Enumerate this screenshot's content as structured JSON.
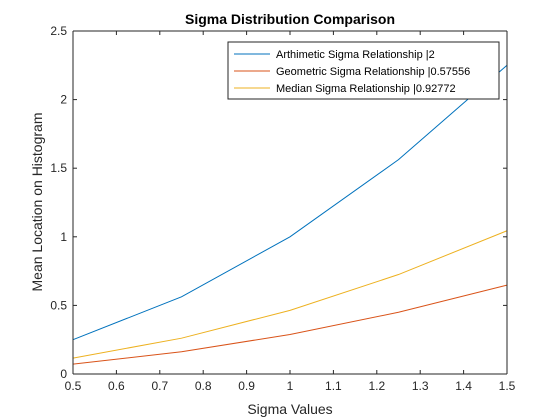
{
  "chart_data": {
    "type": "line",
    "title": "Sigma Distribution Comparison",
    "xlabel": "Sigma Values",
    "ylabel": "Mean Location on Histogram",
    "xlim": [
      0.5,
      1.5
    ],
    "ylim": [
      0,
      2.5
    ],
    "xticks": [
      "0.5",
      "0.6",
      "0.7",
      "0.8",
      "0.9",
      "1",
      "1.1",
      "1.2",
      "1.3",
      "1.4",
      "1.5"
    ],
    "yticks": [
      "0",
      "0.5",
      "1",
      "1.5",
      "2",
      "2.5"
    ],
    "grid": false,
    "legend_position": "top-right",
    "series": [
      {
        "name": "Arthimetic Sigma Relationship |2",
        "color": "#0072BD",
        "x": [
          0.5,
          0.75,
          1.0,
          1.25,
          1.5
        ],
        "y": [
          0.25,
          0.5625,
          1.0,
          1.5625,
          2.25
        ]
      },
      {
        "name": "Geometric Sigma Relationship |0.57556",
        "color": "#D95319",
        "x": [
          0.5,
          0.75,
          1.0,
          1.25,
          1.5
        ],
        "y": [
          0.072,
          0.162,
          0.288,
          0.45,
          0.648
        ]
      },
      {
        "name": "Median Sigma Relationship |0.92772",
        "color": "#EDB120",
        "x": [
          0.5,
          0.75,
          1.0,
          1.25,
          1.5
        ],
        "y": [
          0.116,
          0.261,
          0.464,
          0.725,
          1.044
        ]
      }
    ]
  }
}
